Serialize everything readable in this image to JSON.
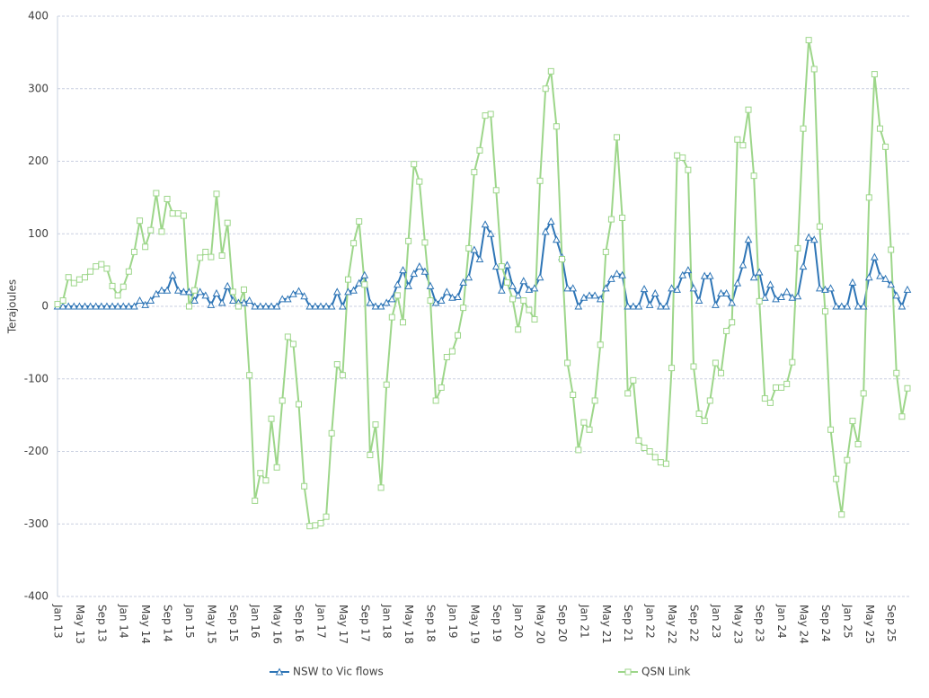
{
  "chart_data": {
    "type": "line",
    "y_label": "Terajoules",
    "categories": [
      "Jan 13",
      null,
      null,
      null,
      "May 13",
      null,
      null,
      null,
      "Sep 13",
      null,
      null,
      null,
      "Jan 14",
      null,
      null,
      null,
      "May 14",
      null,
      null,
      null,
      "Sep 14",
      null,
      null,
      null,
      "Jan 15",
      null,
      null,
      null,
      "May 15",
      null,
      null,
      null,
      "Sep 15",
      null,
      null,
      null,
      "Jan 16",
      null,
      null,
      null,
      "May 16",
      null,
      null,
      null,
      "Sep 16",
      null,
      null,
      null,
      "Jan 17",
      null,
      null,
      null,
      "May 17",
      null,
      null,
      null,
      "Sep 17",
      null,
      null,
      null,
      "Jan 18",
      null,
      null,
      null,
      "May 18",
      null,
      null,
      null,
      "Sep 18",
      null,
      null,
      null,
      "Jan 19",
      null,
      null,
      null,
      "May 19",
      null,
      null,
      null,
      "Sep 19",
      null,
      null,
      null,
      "Jan 20",
      null,
      null,
      null,
      "May 20",
      null,
      null,
      null,
      "Sep 20",
      null,
      null,
      null,
      "Jan 21",
      null,
      null,
      null,
      "May 21",
      null,
      null,
      null,
      "Sep 21",
      null,
      null,
      null,
      "Jan 22",
      null,
      null,
      null,
      "May 22",
      null,
      null,
      null,
      "Sep 22",
      null,
      null,
      null,
      "Jan 23",
      null,
      null,
      null,
      "May 23",
      null,
      null,
      null,
      "Sep 23",
      null,
      null,
      null,
      "Jan 24",
      null,
      null,
      null,
      "May 24",
      null,
      null,
      null,
      "Sep 24",
      null,
      null,
      null,
      "Jan 25",
      null,
      null,
      null,
      "May 25",
      null,
      null,
      null,
      "Sep 25",
      null,
      null,
      null
    ],
    "series": [
      {
        "name": "NSW to Vic flows",
        "color": "#2e75b6",
        "marker": "triangle",
        "values": [
          0,
          0,
          0,
          0,
          0,
          0,
          0,
          0,
          0,
          0,
          0,
          0,
          0,
          0,
          0,
          8,
          2,
          8,
          17,
          22,
          22,
          43,
          22,
          20,
          20,
          8,
          20,
          15,
          2,
          18,
          5,
          28,
          8,
          5,
          5,
          8,
          0,
          0,
          0,
          0,
          0,
          10,
          10,
          17,
          21,
          14,
          0,
          0,
          0,
          0,
          0,
          20,
          0,
          20,
          22,
          32,
          43,
          5,
          0,
          0,
          5,
          10,
          30,
          50,
          28,
          45,
          55,
          48,
          28,
          5,
          8,
          20,
          12,
          13,
          33,
          40,
          78,
          65,
          113,
          100,
          55,
          22,
          57,
          28,
          15,
          35,
          23,
          25,
          40,
          103,
          117,
          92,
          68,
          25,
          25,
          0,
          12,
          15,
          15,
          10,
          25,
          38,
          45,
          43,
          0,
          0,
          0,
          24,
          2,
          18,
          0,
          0,
          25,
          23,
          43,
          50,
          25,
          8,
          42,
          42,
          2,
          18,
          18,
          5,
          32,
          57,
          92,
          40,
          47,
          12,
          30,
          10,
          13,
          20,
          12,
          14,
          55,
          95,
          92,
          25,
          23,
          25,
          0,
          0,
          0,
          33,
          0,
          0,
          40,
          68,
          42,
          38,
          30,
          15,
          0,
          23
        ]
      },
      {
        "name": "QSN Link",
        "color": "#9dd68a",
        "marker": "square",
        "values": [
          3,
          8,
          40,
          32,
          37,
          40,
          48,
          55,
          58,
          52,
          28,
          15,
          27,
          48,
          75,
          118,
          82,
          105,
          156,
          103,
          148,
          128,
          128,
          125,
          0,
          22,
          67,
          75,
          68,
          155,
          70,
          115,
          20,
          0,
          23,
          -95,
          -268,
          -230,
          -240,
          -155,
          -222,
          -130,
          -42,
          -52,
          -135,
          -248,
          -303,
          -302,
          -299,
          -290,
          -175,
          -80,
          -95,
          37,
          87,
          117,
          30,
          -205,
          -163,
          -250,
          -108,
          -15,
          15,
          -22,
          90,
          196,
          172,
          88,
          8,
          -130,
          -112,
          -70,
          -62,
          -40,
          -2,
          80,
          185,
          215,
          263,
          265,
          160,
          55,
          33,
          10,
          -32,
          8,
          -5,
          -18,
          173,
          300,
          324,
          248,
          65,
          -78,
          -122,
          -198,
          -160,
          -170,
          -130,
          -53,
          75,
          120,
          233,
          122,
          -120,
          -102,
          -185,
          -195,
          -200,
          -208,
          -215,
          -217,
          -85,
          208,
          205,
          188,
          -83,
          -148,
          -158,
          -130,
          -78,
          -92,
          -34,
          -22,
          230,
          222,
          271,
          180,
          7,
          -127,
          -133,
          -112,
          -112,
          -107,
          -77,
          80,
          245,
          367,
          327,
          110,
          -7,
          -170,
          -238,
          -287,
          -212,
          -158,
          -190,
          -120,
          150,
          320,
          245,
          220,
          78,
          -92,
          -152,
          -113
        ]
      }
    ],
    "ylim": [
      -400,
      400
    ],
    "yticks": [
      -400,
      -300,
      -200,
      -100,
      0,
      100,
      200,
      300,
      400
    ],
    "grid": true
  }
}
